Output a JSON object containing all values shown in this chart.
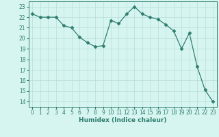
{
  "x": [
    0,
    1,
    2,
    3,
    4,
    5,
    6,
    7,
    8,
    9,
    10,
    11,
    12,
    13,
    14,
    15,
    16,
    17,
    18,
    19,
    20,
    21,
    22,
    23
  ],
  "y": [
    22.3,
    22.0,
    22.0,
    22.0,
    21.2,
    21.0,
    20.1,
    19.6,
    19.2,
    19.3,
    21.7,
    21.4,
    22.3,
    23.0,
    22.3,
    22.0,
    21.8,
    21.3,
    20.7,
    19.0,
    20.5,
    17.3,
    15.1,
    14.0
  ],
  "line_color": "#2e7d6e",
  "marker": "D",
  "marker_size": 2.5,
  "bg_color": "#d6f5f0",
  "grid_color": "#b8ddd8",
  "xlabel": "Humidex (Indice chaleur)",
  "xlim": [
    -0.5,
    23.5
  ],
  "ylim": [
    13.5,
    23.5
  ],
  "yticks": [
    14,
    15,
    16,
    17,
    18,
    19,
    20,
    21,
    22,
    23
  ],
  "xticks": [
    0,
    1,
    2,
    3,
    4,
    5,
    6,
    7,
    8,
    9,
    10,
    11,
    12,
    13,
    14,
    15,
    16,
    17,
    18,
    19,
    20,
    21,
    22,
    23
  ],
  "tick_fontsize": 5.5,
  "xlabel_fontsize": 6.5,
  "axis_color": "#2e7d6e",
  "tick_color": "#2e7d6e"
}
